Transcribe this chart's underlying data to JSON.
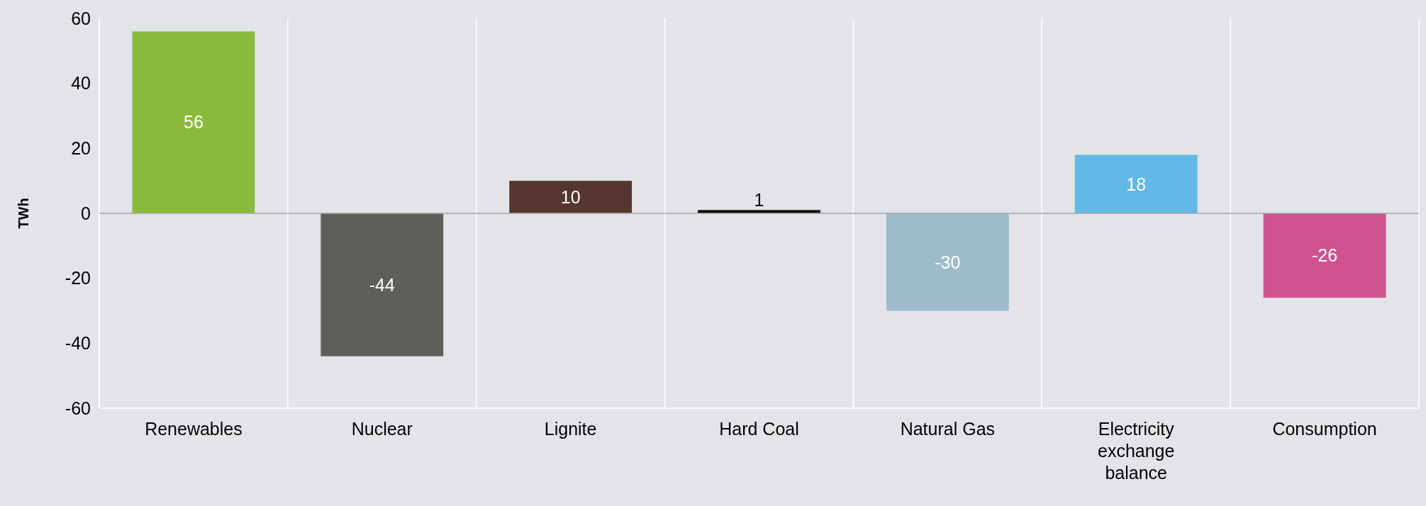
{
  "chart_data": {
    "type": "bar",
    "ylabel": "TWh",
    "categories": [
      "Renewables",
      "Nuclear",
      "Lignite",
      "Hard Coal",
      "Natural Gas",
      "Electricity exchange balance",
      "Consumption"
    ],
    "values": [
      56,
      -44,
      10,
      1,
      -30,
      18,
      -26
    ],
    "colors": [
      "#8aba3c",
      "#5e5f58",
      "#553631",
      "#000000",
      "#9dbccb",
      "#63b9e6",
      "#d05391"
    ],
    "ylim": [
      -60,
      60
    ],
    "yticks": [
      -60,
      -40,
      -20,
      0,
      20,
      40,
      60
    ],
    "grid": "x",
    "data_labels": true
  }
}
